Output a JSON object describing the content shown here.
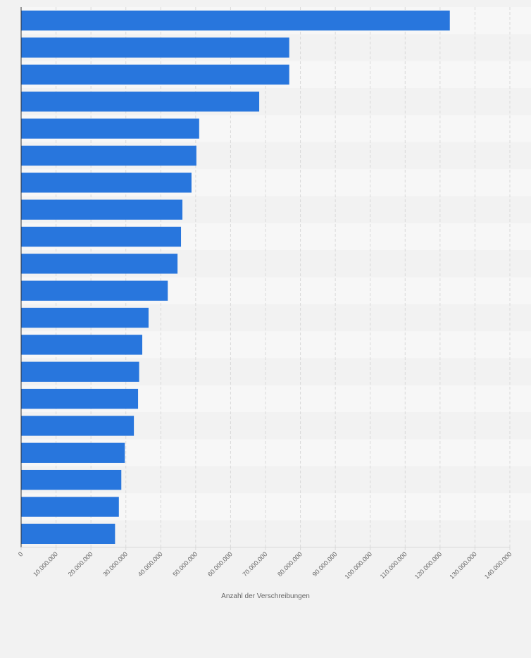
{
  "colors": {
    "background": "#f2f2f2",
    "band_light": "#f7f7f7",
    "band_dark": "#f2f2f2",
    "bar": "#2876dd",
    "grid": "#d9d9d9",
    "axis": "#333333",
    "tick_text": "#666666"
  },
  "chart_data": {
    "type": "bar",
    "orientation": "horizontal",
    "categories": [
      "",
      "",
      "",
      "",
      "",
      "",
      "",
      "",
      "",
      "",
      "",
      "",
      "",
      "",
      "",
      "",
      "",
      "",
      "",
      ""
    ],
    "values": [
      122800000,
      76800000,
      76800000,
      68200000,
      51000000,
      50200000,
      48800000,
      46200000,
      45800000,
      44800000,
      42000000,
      36500000,
      34700000,
      33800000,
      33500000,
      32300000,
      29700000,
      28700000,
      28000000,
      26900000
    ],
    "xlabel": "Anzahl der Verschreibungen",
    "ylabel": "",
    "xlim": [
      0,
      140000000
    ],
    "xticks": [
      0,
      10000000,
      20000000,
      30000000,
      40000000,
      50000000,
      60000000,
      70000000,
      80000000,
      90000000,
      100000000,
      110000000,
      120000000,
      130000000,
      140000000
    ],
    "xtick_labels": [
      "0",
      "10.000.000",
      "20.000.000",
      "30.000.000",
      "40.000.000",
      "50.000.000",
      "60.000.000",
      "70.000.000",
      "80.000.000",
      "90.000.000",
      "100.000.000",
      "110.000.000",
      "120.000.000",
      "130.000.000",
      "140.000.000"
    ],
    "grid": true,
    "legend": "none"
  }
}
